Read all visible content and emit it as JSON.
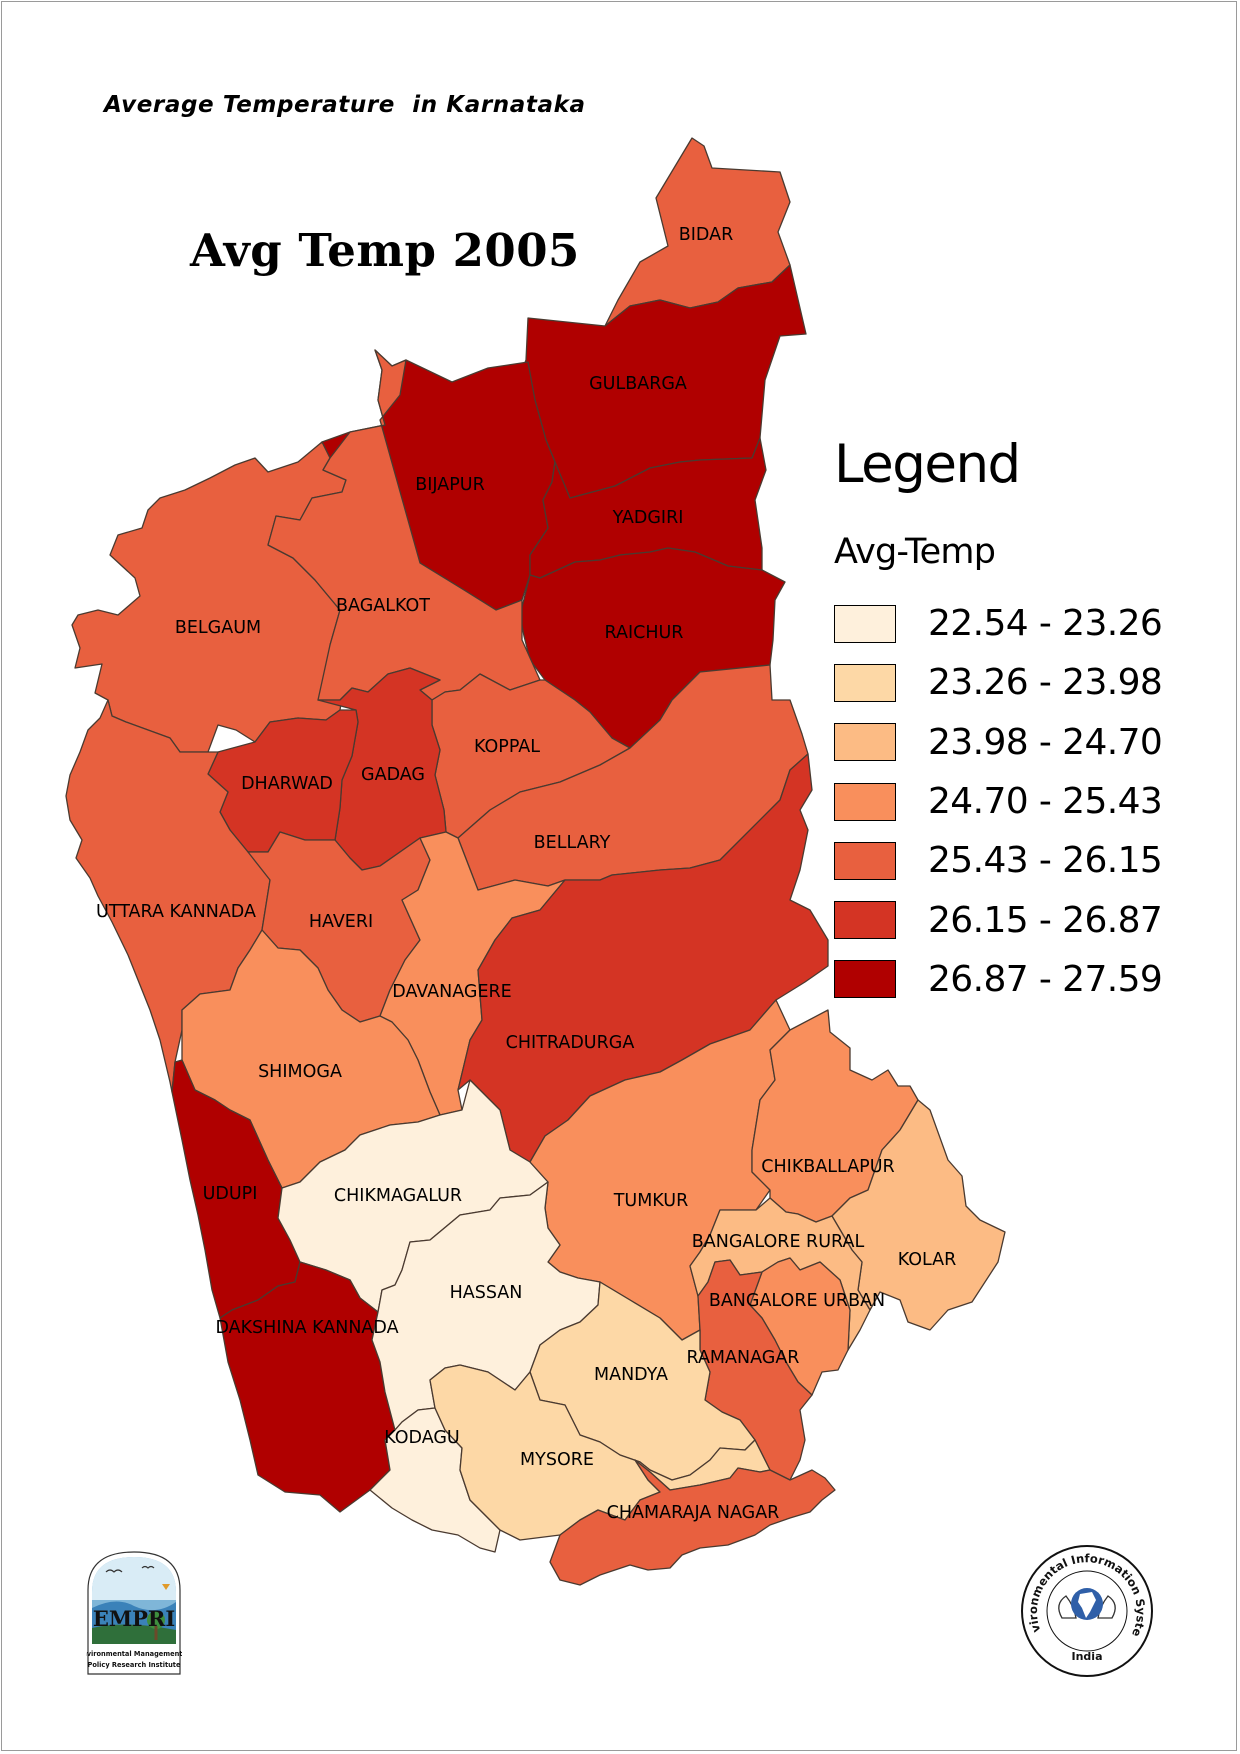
{
  "document": {
    "title": "Average Temperature  in Karnataka",
    "map_title": "Avg Temp 2005"
  },
  "legend": {
    "heading": "Legend",
    "field": "Avg-Temp",
    "classes": [
      {
        "label": "22.54 - 23.26",
        "min": 22.54,
        "max": 23.26,
        "color": "#fef0dc"
      },
      {
        "label": "23.26 - 23.98",
        "min": 23.26,
        "max": 23.98,
        "color": "#fdd8a6"
      },
      {
        "label": "23.98 - 24.70",
        "min": 23.98,
        "max": 24.7,
        "color": "#fcbb84"
      },
      {
        "label": "24.70 - 25.43",
        "min": 24.7,
        "max": 25.43,
        "color": "#f98f5c"
      },
      {
        "label": "25.43 - 26.15",
        "min": 25.43,
        "max": 26.15,
        "color": "#e8603f"
      },
      {
        "label": "26.15 - 26.87",
        "min": 26.15,
        "max": 26.87,
        "color": "#d43424"
      },
      {
        "label": "26.87 - 27.59",
        "min": 26.87,
        "max": 27.59,
        "color": "#b00000"
      }
    ]
  },
  "districts": [
    {
      "id": "bidar",
      "name": "BIDAR",
      "class_index": 4
    },
    {
      "id": "gulbarga",
      "name": "GULBARGA",
      "class_index": 6
    },
    {
      "id": "bijapur",
      "name": "BIJAPUR",
      "class_index": 6
    },
    {
      "id": "yadgiri",
      "name": "YADGIRI",
      "class_index": 6
    },
    {
      "id": "raichur",
      "name": "RAICHUR",
      "class_index": 6
    },
    {
      "id": "belgaum",
      "name": "BELGAUM",
      "class_index": 4
    },
    {
      "id": "bagalkot",
      "name": "BAGALKOT",
      "class_index": 4
    },
    {
      "id": "koppal",
      "name": "KOPPAL",
      "class_index": 4
    },
    {
      "id": "gadag",
      "name": "GADAG",
      "class_index": 5
    },
    {
      "id": "dharwad",
      "name": "DHARWAD",
      "class_index": 5
    },
    {
      "id": "bellary",
      "name": "BELLARY",
      "class_index": 4
    },
    {
      "id": "uttara_kannada",
      "name": "UTTARA KANNADA",
      "class_index": 4
    },
    {
      "id": "haveri",
      "name": "HAVERI",
      "class_index": 4
    },
    {
      "id": "davanagere",
      "name": "DAVANAGERE",
      "class_index": 3
    },
    {
      "id": "chitradurga",
      "name": "CHITRADURGA",
      "class_index": 5
    },
    {
      "id": "shimoga",
      "name": "SHIMOGA",
      "class_index": 3
    },
    {
      "id": "udupi",
      "name": "UDUPI",
      "class_index": 6
    },
    {
      "id": "chikmagalur",
      "name": "CHIKMAGALUR",
      "class_index": 0
    },
    {
      "id": "tumkur",
      "name": "TUMKUR",
      "class_index": 3
    },
    {
      "id": "chikballapur",
      "name": "CHIKBALLAPUR",
      "class_index": 3
    },
    {
      "id": "kolar",
      "name": "KOLAR",
      "class_index": 2
    },
    {
      "id": "bangalore_rural",
      "name": "BANGALORE RURAL",
      "class_index": 2
    },
    {
      "id": "bangalore_urban",
      "name": "BANGALORE URBAN",
      "class_index": 3
    },
    {
      "id": "hassan",
      "name": "HASSAN",
      "class_index": 0
    },
    {
      "id": "dakshina_kannada",
      "name": "DAKSHINA KANNADA",
      "class_index": 6
    },
    {
      "id": "mandya",
      "name": "MANDYA",
      "class_index": 1
    },
    {
      "id": "ramanagar",
      "name": "RAMANAGAR",
      "class_index": 4
    },
    {
      "id": "kodagu",
      "name": "KODAGU",
      "class_index": 0
    },
    {
      "id": "mysore",
      "name": "MYSORE",
      "class_index": 1
    },
    {
      "id": "chamaraja_nagar",
      "name": "CHAMARAJA NAGAR",
      "class_index": 4
    }
  ],
  "logos": {
    "left_logo_text": "EMPRI",
    "left_caption_line1": "Environmental Management &",
    "left_caption_line2": "Policy  Research  Institute",
    "right_ring_text": "Environmental Information System",
    "right_bottom_text": "India"
  }
}
